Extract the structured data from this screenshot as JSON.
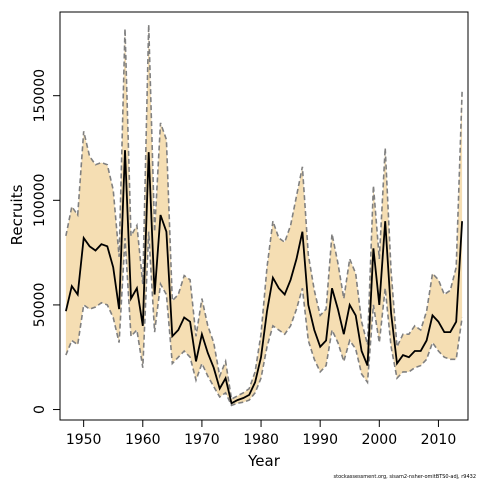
{
  "chart_data": {
    "type": "line",
    "xlabel": "Year",
    "ylabel": "Recruits",
    "xlim": [
      1946,
      2015
    ],
    "ylim": [
      -5000,
      190000
    ],
    "x_ticks": [
      1950,
      1960,
      1970,
      1980,
      1990,
      2000,
      2010
    ],
    "y_ticks": [
      0,
      50000,
      100000,
      150000
    ],
    "y_tick_labels": [
      "0",
      "50000",
      "100000",
      "150000"
    ],
    "band_color": "#f5deb3",
    "line_color": "#000000",
    "bound_color": "#808080",
    "credit_text": "stockassessment.org, sisam2-nsher-omitBTS0-adj, r9432",
    "series": [
      {
        "x": [
          1947,
          1948,
          1949,
          1950,
          1951,
          1952,
          1953,
          1954,
          1955,
          1956,
          1957,
          1958,
          1959,
          1960,
          1961,
          1962,
          1963,
          1964,
          1965,
          1966,
          1967,
          1968,
          1969,
          1970,
          1971,
          1972,
          1973,
          1974,
          1975,
          1976,
          1977,
          1978,
          1979,
          1980,
          1981,
          1982,
          1983,
          1984,
          1985,
          1986,
          1987,
          1988,
          1989,
          1990,
          1991,
          1992,
          1993,
          1994,
          1995,
          1996,
          1997,
          1998,
          1999,
          2000,
          2001,
          2002,
          2003,
          2004,
          2005,
          2006,
          2007,
          2008,
          2009,
          2010,
          2011,
          2012,
          2013,
          2014
        ],
        "y": [
          47000,
          59000,
          55000,
          82000,
          78000,
          76000,
          79000,
          78000,
          68000,
          48000,
          124000,
          53000,
          58000,
          40000,
          123000,
          55000,
          93000,
          85000,
          35000,
          38000,
          44000,
          42000,
          23000,
          36000,
          27000,
          20000,
          10000,
          15000,
          3000,
          4500,
          5500,
          7000,
          13000,
          25000,
          47000,
          63000,
          58000,
          55000,
          62000,
          72000,
          85000,
          50000,
          38000,
          30000,
          33000,
          58000,
          48000,
          36000,
          50000,
          45000,
          28000,
          21000,
          77000,
          50000,
          90000,
          46000,
          22000,
          26000,
          25000,
          28000,
          28000,
          33000,
          45000,
          42000,
          37000,
          37000,
          42000,
          90000
        ],
        "lower": [
          26000,
          33000,
          31000,
          50000,
          48000,
          49000,
          51000,
          50000,
          44000,
          32000,
          82000,
          35000,
          38000,
          20000,
          85000,
          37000,
          60000,
          55000,
          22000,
          25000,
          28000,
          25000,
          14000,
          22000,
          16000,
          11000,
          6000,
          8000,
          2000,
          3000,
          3500,
          4500,
          8000,
          15000,
          30000,
          40000,
          38000,
          36000,
          40000,
          48000,
          58000,
          33000,
          24000,
          18000,
          21000,
          38000,
          32000,
          23000,
          33000,
          29000,
          17000,
          13000,
          50000,
          32000,
          58000,
          30000,
          15000,
          18000,
          18000,
          20000,
          21000,
          24000,
          32000,
          28000,
          25000,
          24000,
          24000,
          44000
        ],
        "upper": [
          83000,
          97000,
          93000,
          133000,
          121000,
          117000,
          118000,
          117000,
          105000,
          73000,
          182000,
          83000,
          88000,
          60000,
          184000,
          85000,
          137000,
          129000,
          52000,
          55000,
          64000,
          62000,
          35000,
          53000,
          40000,
          32000,
          16000,
          23000,
          5000,
          6500,
          8000,
          10000,
          18000,
          36000,
          68000,
          90000,
          82000,
          80000,
          88000,
          102000,
          116000,
          74000,
          57000,
          45000,
          48000,
          84000,
          70000,
          53000,
          72000,
          65000,
          42000,
          31000,
          107000,
          72000,
          125000,
          66000,
          30000,
          36000,
          36000,
          40000,
          38000,
          47000,
          65000,
          62000,
          55000,
          57000,
          68000,
          152000
        ]
      }
    ]
  }
}
